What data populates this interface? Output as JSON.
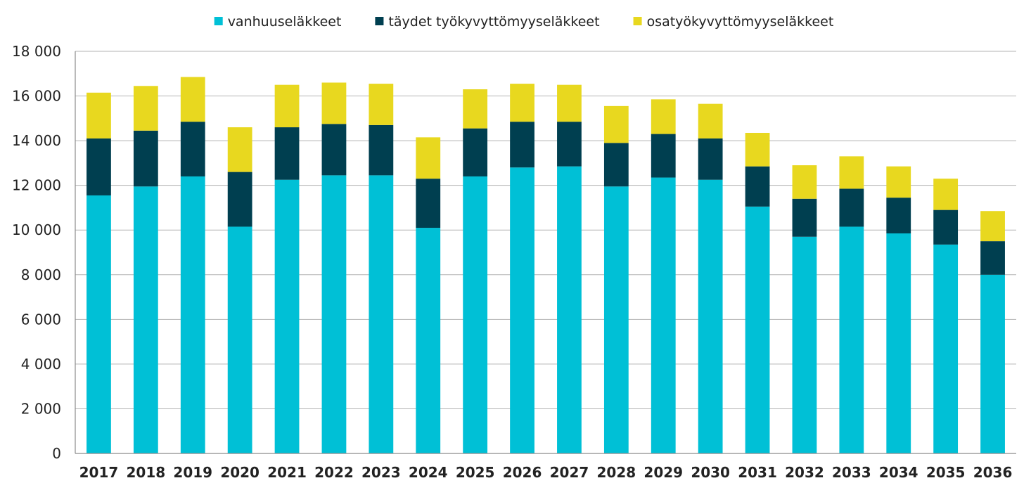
{
  "chart_data": {
    "type": "bar",
    "stacked": true,
    "categories": [
      "2017",
      "2018",
      "2019",
      "2020",
      "2021",
      "2022",
      "2023",
      "2024",
      "2025",
      "2026",
      "2027",
      "2028",
      "2029",
      "2030",
      "2031",
      "2032",
      "2033",
      "2034",
      "2035",
      "2036"
    ],
    "series": [
      {
        "name": "vanhuuseläkkeet",
        "color": "#00c0d6",
        "values": [
          11550,
          11950,
          12400,
          10150,
          12250,
          12450,
          12450,
          10100,
          12400,
          12800,
          12850,
          11950,
          12350,
          12250,
          11050,
          9700,
          10150,
          9850,
          9350,
          8000
        ]
      },
      {
        "name": "täydet työkyvyttömyyseläkkeet",
        "color": "#003f50",
        "values": [
          2550,
          2500,
          2450,
          2450,
          2350,
          2300,
          2250,
          2200,
          2150,
          2050,
          2000,
          1950,
          1950,
          1850,
          1800,
          1700,
          1700,
          1600,
          1550,
          1500
        ]
      },
      {
        "name": "osatyökyvyttömyyseläkkeet",
        "color": "#e8d81f",
        "values": [
          2050,
          2000,
          2000,
          2000,
          1900,
          1850,
          1850,
          1850,
          1750,
          1700,
          1650,
          1650,
          1550,
          1550,
          1500,
          1500,
          1450,
          1400,
          1400,
          1350
        ]
      }
    ],
    "yticks": [
      "0",
      "2 000",
      "4 000",
      "6 000",
      "8 000",
      "10 000",
      "12 000",
      "14 000",
      "16 000",
      "18 000"
    ],
    "ylim": [
      0,
      18000
    ],
    "ystep": 2000,
    "grid": true,
    "legend_position": "top-center",
    "title": "",
    "xlabel": "",
    "ylabel": ""
  }
}
